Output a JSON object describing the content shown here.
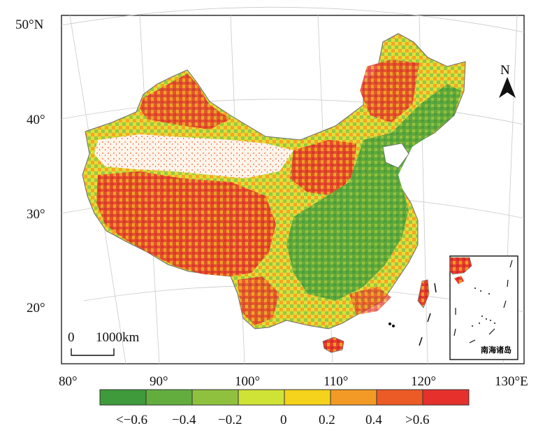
{
  "latitude_labels": [
    "50°N",
    "40°",
    "30°",
    "20°"
  ],
  "longitude_labels": [
    "80°",
    "90°",
    "100°",
    "110°",
    "120°",
    "130°E"
  ],
  "north_arrow": {
    "label": "N",
    "icon": "north-arrow-icon"
  },
  "scale_bar": {
    "zero_label": "0",
    "distance_label": "1000km"
  },
  "inset": {
    "label": "南海诸岛"
  },
  "legend": {
    "colors": [
      "#3e9a3a",
      "#62ad3e",
      "#8fc13f",
      "#cfe236",
      "#f5d21b",
      "#f29a25",
      "#ec5a26",
      "#e5302c"
    ],
    "labels": [
      "<−0.6",
      "−0.4",
      "−0.2",
      "0",
      "0.2",
      "0.4",
      ">0.6"
    ]
  },
  "map_colors": {
    "strong_negative": "#3e9a3a",
    "negative": "#7cb83f",
    "neutral": "#cfe236",
    "positive": "#f2b224",
    "strong_positive": "#e5302c",
    "graticule": "#c9c9c9"
  }
}
